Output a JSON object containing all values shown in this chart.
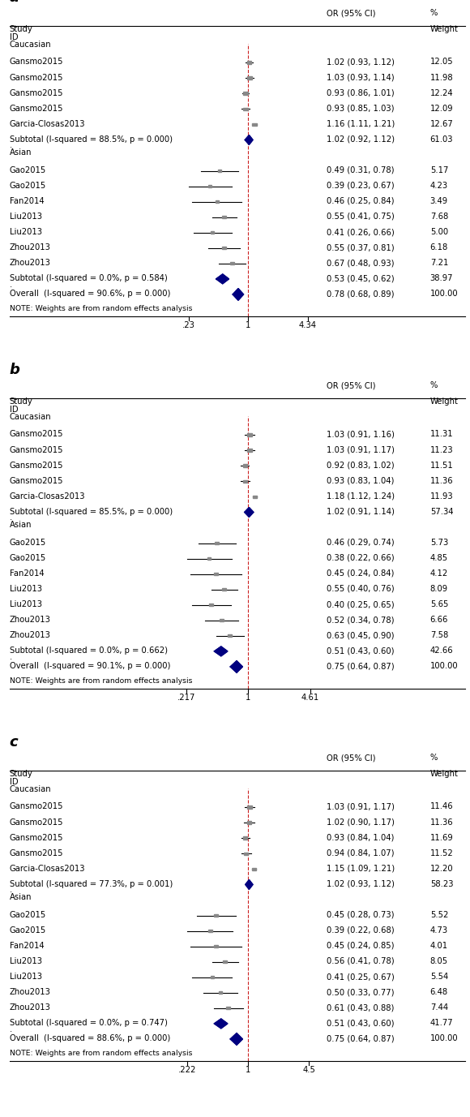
{
  "panels": [
    {
      "label": "a",
      "x_ticks": [
        0.23,
        1,
        4.34
      ],
      "x_tick_labels": [
        ".23",
        "1",
        "4.34"
      ],
      "caucasian": {
        "studies": [
          "Gansmo2015",
          "Gansmo2015",
          "Gansmo2015",
          "Gansmo2015",
          "Garcia-Closas2013"
        ],
        "or": [
          1.02,
          1.03,
          0.93,
          0.93,
          1.16
        ],
        "lo": [
          0.93,
          0.93,
          0.86,
          0.85,
          1.11
        ],
        "hi": [
          1.12,
          1.14,
          1.01,
          1.03,
          1.21
        ],
        "or_ci": [
          "1.02 (0.93, 1.12)",
          "1.03 (0.93, 1.14)",
          "0.93 (0.86, 1.01)",
          "0.93 (0.85, 1.03)",
          "1.16 (1.11, 1.21)"
        ],
        "weight": [
          "12.05",
          "11.98",
          "12.24",
          "12.09",
          "12.67"
        ],
        "subtotal_or": 1.02,
        "subtotal_lo": 0.92,
        "subtotal_hi": 1.12,
        "subtotal_text": "1.02 (0.92, 1.12)",
        "subtotal_weight": "61.03",
        "subtotal_label": "Subtotal (I-squared = 88.5%, p = 0.000)"
      },
      "asian": {
        "studies": [
          "Gao2015",
          "Gao2015",
          "Fan2014",
          "Liu2013",
          "Liu2013",
          "Zhou2013",
          "Zhou2013"
        ],
        "or": [
          0.49,
          0.39,
          0.46,
          0.55,
          0.41,
          0.55,
          0.67
        ],
        "lo": [
          0.31,
          0.23,
          0.25,
          0.41,
          0.26,
          0.37,
          0.48
        ],
        "hi": [
          0.78,
          0.67,
          0.84,
          0.75,
          0.66,
          0.81,
          0.93
        ],
        "or_ci": [
          "0.49 (0.31, 0.78)",
          "0.39 (0.23, 0.67)",
          "0.46 (0.25, 0.84)",
          "0.55 (0.41, 0.75)",
          "0.41 (0.26, 0.66)",
          "0.55 (0.37, 0.81)",
          "0.67 (0.48, 0.93)"
        ],
        "weight": [
          "5.17",
          "4.23",
          "3.49",
          "7.68",
          "5.00",
          "6.18",
          "7.21"
        ],
        "subtotal_or": 0.53,
        "subtotal_lo": 0.45,
        "subtotal_hi": 0.62,
        "subtotal_text": "0.53 (0.45, 0.62)",
        "subtotal_weight": "38.97",
        "subtotal_label": "Subtotal (I-squared = 0.0%, p = 0.584)"
      },
      "overall_or": 0.78,
      "overall_lo": 0.68,
      "overall_hi": 0.89,
      "overall_text": "0.78 (0.68, 0.89)",
      "overall_weight": "100.00",
      "overall_label": "Overall  (I-squared = 90.6%, p = 0.000)"
    },
    {
      "label": "b",
      "x_ticks": [
        0.217,
        1,
        4.61
      ],
      "x_tick_labels": [
        ".217",
        "1",
        "4.61"
      ],
      "caucasian": {
        "studies": [
          "Gansmo2015",
          "Gansmo2015",
          "Gansmo2015",
          "Gansmo2015",
          "Garcia-Closas2013"
        ],
        "or": [
          1.03,
          1.03,
          0.92,
          0.93,
          1.18
        ],
        "lo": [
          0.91,
          0.91,
          0.83,
          0.83,
          1.12
        ],
        "hi": [
          1.16,
          1.17,
          1.02,
          1.04,
          1.24
        ],
        "or_ci": [
          "1.03 (0.91, 1.16)",
          "1.03 (0.91, 1.17)",
          "0.92 (0.83, 1.02)",
          "0.93 (0.83, 1.04)",
          "1.18 (1.12, 1.24)"
        ],
        "weight": [
          "11.31",
          "11.23",
          "11.51",
          "11.36",
          "11.93"
        ],
        "subtotal_or": 1.02,
        "subtotal_lo": 0.91,
        "subtotal_hi": 1.14,
        "subtotal_text": "1.02 (0.91, 1.14)",
        "subtotal_weight": "57.34",
        "subtotal_label": "Subtotal (I-squared = 85.5%, p = 0.000)"
      },
      "asian": {
        "studies": [
          "Gao2015",
          "Gao2015",
          "Fan2014",
          "Liu2013",
          "Liu2013",
          "Zhou2013",
          "Zhou2013"
        ],
        "or": [
          0.46,
          0.38,
          0.45,
          0.55,
          0.4,
          0.52,
          0.63
        ],
        "lo": [
          0.29,
          0.22,
          0.24,
          0.4,
          0.25,
          0.34,
          0.45
        ],
        "hi": [
          0.74,
          0.66,
          0.84,
          0.76,
          0.65,
          0.78,
          0.9
        ],
        "or_ci": [
          "0.46 (0.29, 0.74)",
          "0.38 (0.22, 0.66)",
          "0.45 (0.24, 0.84)",
          "0.55 (0.40, 0.76)",
          "0.40 (0.25, 0.65)",
          "0.52 (0.34, 0.78)",
          "0.63 (0.45, 0.90)"
        ],
        "weight": [
          "5.73",
          "4.85",
          "4.12",
          "8.09",
          "5.65",
          "6.66",
          "7.58"
        ],
        "subtotal_or": 0.51,
        "subtotal_lo": 0.43,
        "subtotal_hi": 0.6,
        "subtotal_text": "0.51 (0.43, 0.60)",
        "subtotal_weight": "42.66",
        "subtotal_label": "Subtotal (I-squared = 0.0%, p = 0.662)"
      },
      "overall_or": 0.75,
      "overall_lo": 0.64,
      "overall_hi": 0.87,
      "overall_text": "0.75 (0.64, 0.87)",
      "overall_weight": "100.00",
      "overall_label": "Overall  (I-squared = 90.1%, p = 0.000)"
    },
    {
      "label": "c",
      "x_ticks": [
        0.222,
        1,
        4.5
      ],
      "x_tick_labels": [
        ".222",
        "1",
        "4.5"
      ],
      "caucasian": {
        "studies": [
          "Gansmo2015",
          "Gansmo2015",
          "Gansmo2015",
          "Gansmo2015",
          "Garcia-Closas2013"
        ],
        "or": [
          1.03,
          1.02,
          0.93,
          0.94,
          1.15
        ],
        "lo": [
          0.91,
          0.9,
          0.84,
          0.84,
          1.09
        ],
        "hi": [
          1.17,
          1.17,
          1.04,
          1.07,
          1.21
        ],
        "or_ci": [
          "1.03 (0.91, 1.17)",
          "1.02 (0.90, 1.17)",
          "0.93 (0.84, 1.04)",
          "0.94 (0.84, 1.07)",
          "1.15 (1.09, 1.21)"
        ],
        "weight": [
          "11.46",
          "11.36",
          "11.69",
          "11.52",
          "12.20"
        ],
        "subtotal_or": 1.02,
        "subtotal_lo": 0.93,
        "subtotal_hi": 1.12,
        "subtotal_text": "1.02 (0.93, 1.12)",
        "subtotal_weight": "58.23",
        "subtotal_label": "Subtotal (I-squared = 77.3%, p = 0.001)"
      },
      "asian": {
        "studies": [
          "Gao2015",
          "Gao2015",
          "Fan2014",
          "Liu2013",
          "Liu2013",
          "Zhou2013",
          "Zhou2013"
        ],
        "or": [
          0.45,
          0.39,
          0.45,
          0.56,
          0.41,
          0.5,
          0.61
        ],
        "lo": [
          0.28,
          0.22,
          0.24,
          0.41,
          0.25,
          0.33,
          0.43
        ],
        "hi": [
          0.73,
          0.68,
          0.85,
          0.78,
          0.67,
          0.77,
          0.88
        ],
        "or_ci": [
          "0.45 (0.28, 0.73)",
          "0.39 (0.22, 0.68)",
          "0.45 (0.24, 0.85)",
          "0.56 (0.41, 0.78)",
          "0.41 (0.25, 0.67)",
          "0.50 (0.33, 0.77)",
          "0.61 (0.43, 0.88)"
        ],
        "weight": [
          "5.52",
          "4.73",
          "4.01",
          "8.05",
          "5.54",
          "6.48",
          "7.44"
        ],
        "subtotal_or": 0.51,
        "subtotal_lo": 0.43,
        "subtotal_hi": 0.6,
        "subtotal_text": "0.51 (0.43, 0.60)",
        "subtotal_weight": "41.77",
        "subtotal_label": "Subtotal (I-squared = 0.0%, p = 0.747)"
      },
      "overall_or": 0.75,
      "overall_lo": 0.64,
      "overall_hi": 0.87,
      "overall_text": "0.75 (0.64, 0.87)",
      "overall_weight": "100.00",
      "overall_label": "Overall  (I-squared = 88.6%, p = 0.000)"
    }
  ]
}
